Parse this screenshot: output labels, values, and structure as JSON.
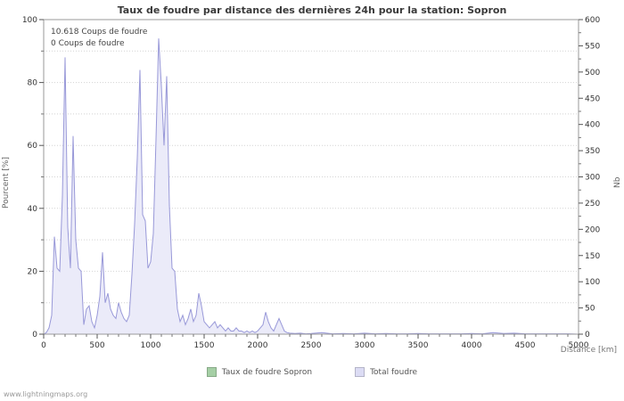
{
  "footer": {
    "text": "www.lightningmaps.org"
  },
  "chart_data": {
    "type": "area",
    "title": "Taux de foudre par distance des dernières 24h pour la station: Sopron",
    "x_label": "Distance  [km]",
    "y_left_label": "Pourcent  [%]",
    "y_right_label": "Nb",
    "annotations": [
      "10.618  Coups de foudre",
      "0  Coups de foudre"
    ],
    "x_range": [
      0,
      5000
    ],
    "x_major_step": 500,
    "x_minor_step": 100,
    "y_left_range": [
      0,
      100
    ],
    "y_left_major_step": 20,
    "y_left_minor_step": 10,
    "y_right_range": [
      0,
      600
    ],
    "y_right_major_step": 50,
    "y_right_minor_step": 25,
    "right_axis_scale_note": "Nb = percent_left_axis * 6",
    "grid": "horizontal dotted",
    "legend_position": "bottom center",
    "legend": [
      {
        "label": "Taux de foudre Sopron",
        "color": "#a5cfa5"
      },
      {
        "label": "Total foudre",
        "color": "#dcdcf4"
      }
    ],
    "series": [
      {
        "name": "Taux de foudre Sopron",
        "axis": "left_percent",
        "color": "#90c090",
        "fill": false,
        "points": [
          [
            0,
            0
          ],
          [
            5000,
            0
          ]
        ]
      },
      {
        "name": "Total foudre",
        "axis": "left_percent",
        "color": "#9898d8",
        "fill": true,
        "fill_color": "#ebebf9",
        "points": [
          [
            0,
            0
          ],
          [
            25,
            0.5
          ],
          [
            50,
            2
          ],
          [
            75,
            6
          ],
          [
            100,
            31
          ],
          [
            125,
            21
          ],
          [
            150,
            20
          ],
          [
            175,
            44
          ],
          [
            200,
            88
          ],
          [
            225,
            34
          ],
          [
            250,
            21
          ],
          [
            275,
            63
          ],
          [
            300,
            30
          ],
          [
            325,
            21
          ],
          [
            350,
            20
          ],
          [
            375,
            3
          ],
          [
            400,
            8
          ],
          [
            425,
            9
          ],
          [
            450,
            4
          ],
          [
            475,
            2
          ],
          [
            500,
            6
          ],
          [
            525,
            12
          ],
          [
            550,
            26
          ],
          [
            575,
            10
          ],
          [
            600,
            13
          ],
          [
            625,
            8
          ],
          [
            650,
            6
          ],
          [
            675,
            5
          ],
          [
            700,
            10
          ],
          [
            725,
            7
          ],
          [
            750,
            5
          ],
          [
            775,
            4
          ],
          [
            800,
            6
          ],
          [
            825,
            19
          ],
          [
            850,
            35
          ],
          [
            875,
            56
          ],
          [
            900,
            84
          ],
          [
            925,
            38
          ],
          [
            950,
            36
          ],
          [
            975,
            21
          ],
          [
            1000,
            23
          ],
          [
            1025,
            32
          ],
          [
            1050,
            62
          ],
          [
            1075,
            94
          ],
          [
            1100,
            79
          ],
          [
            1125,
            60
          ],
          [
            1150,
            82
          ],
          [
            1175,
            41
          ],
          [
            1200,
            21
          ],
          [
            1225,
            20
          ],
          [
            1250,
            8
          ],
          [
            1275,
            4
          ],
          [
            1300,
            6
          ],
          [
            1325,
            3
          ],
          [
            1350,
            5
          ],
          [
            1375,
            8
          ],
          [
            1400,
            4
          ],
          [
            1425,
            6
          ],
          [
            1450,
            13
          ],
          [
            1475,
            9
          ],
          [
            1500,
            4
          ],
          [
            1525,
            3
          ],
          [
            1550,
            2
          ],
          [
            1575,
            3
          ],
          [
            1600,
            4
          ],
          [
            1625,
            2
          ],
          [
            1650,
            3
          ],
          [
            1675,
            2
          ],
          [
            1700,
            1
          ],
          [
            1725,
            2
          ],
          [
            1750,
            1
          ],
          [
            1775,
            1
          ],
          [
            1800,
            2
          ],
          [
            1825,
            1
          ],
          [
            1850,
            1
          ],
          [
            1875,
            0.5
          ],
          [
            1900,
            1
          ],
          [
            1925,
            0.5
          ],
          [
            1950,
            1
          ],
          [
            1975,
            0.5
          ],
          [
            2000,
            1
          ],
          [
            2025,
            2
          ],
          [
            2050,
            3
          ],
          [
            2075,
            7
          ],
          [
            2100,
            4
          ],
          [
            2125,
            2
          ],
          [
            2150,
            1
          ],
          [
            2175,
            3
          ],
          [
            2200,
            5
          ],
          [
            2225,
            3
          ],
          [
            2250,
            1
          ],
          [
            2275,
            0.5
          ],
          [
            2300,
            0.3
          ],
          [
            2350,
            0.2
          ],
          [
            2400,
            0.3
          ],
          [
            2450,
            0.1
          ],
          [
            2500,
            0.2
          ],
          [
            2600,
            0.5
          ],
          [
            2700,
            0.1
          ],
          [
            2800,
            0.2
          ],
          [
            2900,
            0.1
          ],
          [
            3000,
            0.3
          ],
          [
            3100,
            0.1
          ],
          [
            3200,
            0.2
          ],
          [
            3300,
            0.1
          ],
          [
            3400,
            0.1
          ],
          [
            3500,
            0.2
          ],
          [
            3600,
            0.1
          ],
          [
            3700,
            0.1
          ],
          [
            3800,
            0.1
          ],
          [
            3900,
            0.1
          ],
          [
            4000,
            0.2
          ],
          [
            4100,
            0.1
          ],
          [
            4200,
            0.5
          ],
          [
            4300,
            0.2
          ],
          [
            4400,
            0.3
          ],
          [
            4500,
            0.1
          ],
          [
            4600,
            0.1
          ],
          [
            4700,
            0.1
          ],
          [
            4800,
            0.1
          ],
          [
            4900,
            0.1
          ],
          [
            5000,
            0
          ]
        ]
      }
    ]
  }
}
